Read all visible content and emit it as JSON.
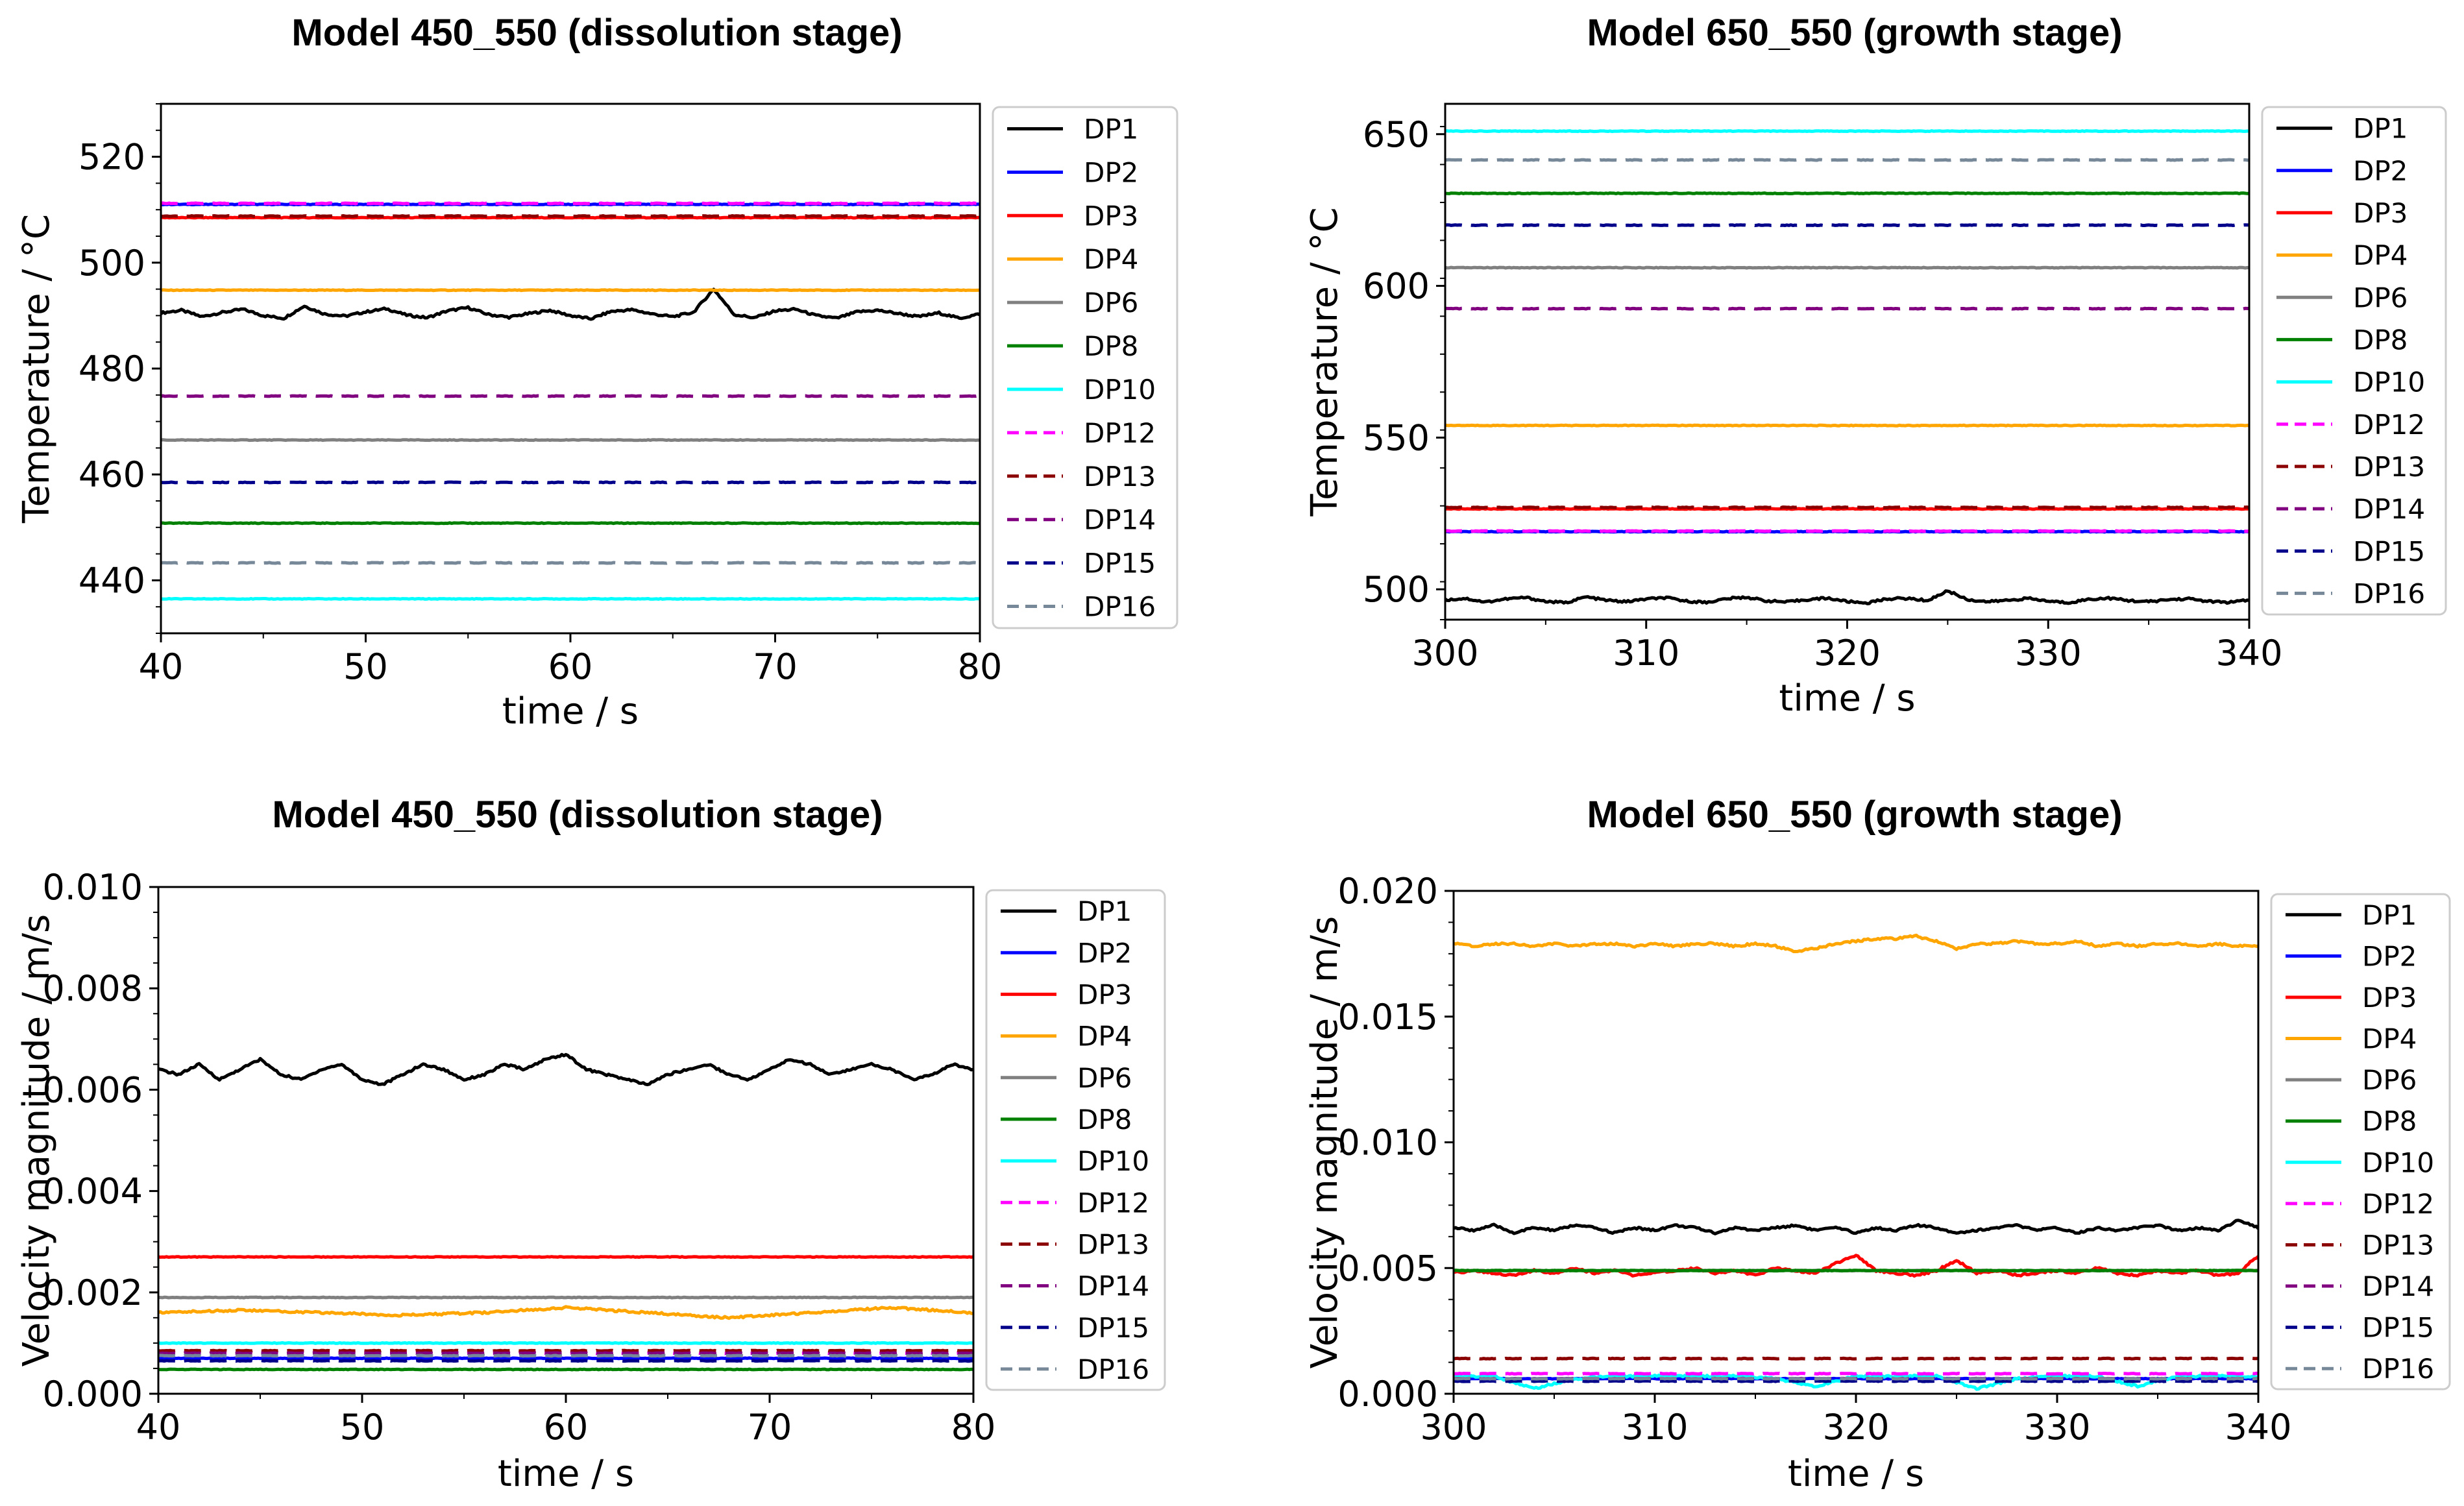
{
  "chart_data": [
    {
      "type": "line",
      "title": "Model 450_550 (dissolution stage)",
      "xlabel": "time / s",
      "ylabel": "Temperature / °C",
      "xlim": [
        40,
        80
      ],
      "ylim": [
        430,
        530
      ],
      "xticks": [
        40,
        50,
        60,
        70,
        80
      ],
      "xtick_labels": [
        "40",
        "50",
        "60",
        "70",
        "80"
      ],
      "yticks": [
        440,
        460,
        480,
        500,
        520
      ],
      "ytick_labels": [
        "440",
        "460",
        "480",
        "500",
        "520"
      ],
      "legend_position": "outside-right",
      "series": [
        {
          "name": "DP1",
          "color": "#000000",
          "dash": "solid",
          "values": [
            490.5,
            491.0,
            489.8,
            490.6,
            491.2,
            490.0,
            489.5,
            491.8,
            490.3,
            489.9,
            490.7,
            491.3,
            490.1,
            489.6,
            490.9,
            491.5,
            490.2,
            489.7,
            490.4,
            491.0,
            490.0,
            489.4,
            490.8,
            491.1,
            490.3,
            489.8,
            490.6,
            495.0,
            490.2,
            489.6,
            490.9,
            491.2,
            490.0,
            489.5,
            490.7,
            491.0,
            490.4,
            489.8,
            490.5,
            489.5,
            490.3
          ]
        },
        {
          "name": "DP2",
          "color": "#0000ff",
          "dash": "solid",
          "values": [
            511.0,
            511.0
          ]
        },
        {
          "name": "DP3",
          "color": "#ff0000",
          "dash": "solid",
          "values": [
            508.5,
            508.5
          ]
        },
        {
          "name": "DP4",
          "color": "#ffa500",
          "dash": "solid",
          "values": [
            494.8,
            494.8
          ]
        },
        {
          "name": "DP6",
          "color": "#808080",
          "dash": "solid",
          "values": [
            466.5,
            466.5
          ]
        },
        {
          "name": "DP8",
          "color": "#008000",
          "dash": "solid",
          "values": [
            450.8,
            450.8
          ]
        },
        {
          "name": "DP10",
          "color": "#00ffff",
          "dash": "solid",
          "values": [
            436.5,
            436.5
          ]
        },
        {
          "name": "DP12",
          "color": "#ff00ff",
          "dash": "dashed",
          "values": [
            511.2,
            511.2
          ]
        },
        {
          "name": "DP13",
          "color": "#8b0000",
          "dash": "dashed",
          "values": [
            508.8,
            508.8
          ]
        },
        {
          "name": "DP14",
          "color": "#800080",
          "dash": "dashed",
          "values": [
            474.8,
            474.8
          ]
        },
        {
          "name": "DP15",
          "color": "#00008b",
          "dash": "dashed",
          "values": [
            458.5,
            458.5
          ]
        },
        {
          "name": "DP16",
          "color": "#778899",
          "dash": "dashed",
          "values": [
            443.3,
            443.3
          ]
        }
      ]
    },
    {
      "type": "line",
      "title": "Model 650_550 (growth stage)",
      "xlabel": "time / s",
      "ylabel": "Temperature / °C",
      "xlim": [
        300,
        340
      ],
      "ylim": [
        490,
        660
      ],
      "xticks": [
        300,
        310,
        320,
        330,
        340
      ],
      "xtick_labels": [
        "300",
        "310",
        "320",
        "330",
        "340"
      ],
      "yticks": [
        500,
        550,
        600,
        650
      ],
      "ytick_labels": [
        "500",
        "550",
        "600",
        "650"
      ],
      "legend_position": "outside-right",
      "series": [
        {
          "name": "DP1",
          "color": "#000000",
          "dash": "solid",
          "values": [
            496.5,
            497.0,
            495.8,
            496.8,
            497.3,
            496.0,
            495.6,
            497.5,
            496.4,
            495.9,
            496.8,
            497.2,
            496.1,
            495.7,
            496.9,
            497.4,
            496.2,
            495.8,
            496.6,
            497.1,
            496.0,
            495.5,
            496.9,
            497.0,
            496.3,
            499.5,
            496.6,
            495.9,
            496.4,
            497.0,
            496.1,
            495.6,
            496.7,
            497.1,
            496.3,
            495.9,
            496.6,
            496.9,
            496.0,
            495.7,
            496.4
          ]
        },
        {
          "name": "DP2",
          "color": "#0000ff",
          "dash": "solid",
          "values": [
            519.0,
            519.0
          ]
        },
        {
          "name": "DP3",
          "color": "#ff0000",
          "dash": "solid",
          "values": [
            526.5,
            526.5
          ]
        },
        {
          "name": "DP4",
          "color": "#ffa500",
          "dash": "solid",
          "values": [
            554.0,
            554.0
          ]
        },
        {
          "name": "DP6",
          "color": "#808080",
          "dash": "solid",
          "values": [
            606.0,
            606.0
          ]
        },
        {
          "name": "DP8",
          "color": "#008000",
          "dash": "solid",
          "values": [
            630.5,
            630.5
          ]
        },
        {
          "name": "DP10",
          "color": "#00ffff",
          "dash": "solid",
          "values": [
            651.0,
            651.0
          ]
        },
        {
          "name": "DP12",
          "color": "#ff00ff",
          "dash": "dashed",
          "values": [
            519.2,
            519.2
          ]
        },
        {
          "name": "DP13",
          "color": "#8b0000",
          "dash": "dashed",
          "values": [
            527.0,
            527.0
          ]
        },
        {
          "name": "DP14",
          "color": "#800080",
          "dash": "dashed",
          "values": [
            592.5,
            592.5
          ]
        },
        {
          "name": "DP15",
          "color": "#00008b",
          "dash": "dashed",
          "values": [
            620.0,
            620.0
          ]
        },
        {
          "name": "DP16",
          "color": "#778899",
          "dash": "dashed",
          "values": [
            641.5,
            641.5
          ]
        }
      ]
    },
    {
      "type": "line",
      "title": "Model 450_550 (dissolution stage)",
      "xlabel": "time / s",
      "ylabel": "Velocity magnitude / m/s",
      "xlim": [
        40,
        80
      ],
      "ylim": [
        0,
        0.01
      ],
      "xticks": [
        40,
        50,
        60,
        70,
        80
      ],
      "xtick_labels": [
        "40",
        "50",
        "60",
        "70",
        "80"
      ],
      "yticks": [
        0,
        0.002,
        0.004,
        0.006,
        0.008,
        0.01
      ],
      "ytick_labels": [
        "0.000",
        "0.002",
        "0.004",
        "0.006",
        "0.008",
        "0.010"
      ],
      "legend_position": "outside-right",
      "series": [
        {
          "name": "DP1",
          "color": "#000000",
          "dash": "solid",
          "values": [
            0.0064,
            0.0063,
            0.0065,
            0.0062,
            0.0064,
            0.0066,
            0.0063,
            0.0062,
            0.0064,
            0.0065,
            0.0062,
            0.0061,
            0.0063,
            0.0065,
            0.0064,
            0.0062,
            0.0063,
            0.0065,
            0.0064,
            0.0066,
            0.0067,
            0.0064,
            0.0063,
            0.0062,
            0.0061,
            0.0063,
            0.0064,
            0.0065,
            0.0063,
            0.0062,
            0.0064,
            0.0066,
            0.0065,
            0.0063,
            0.0064,
            0.0065,
            0.0064,
            0.0062,
            0.0063,
            0.0065,
            0.0064
          ]
        },
        {
          "name": "DP2",
          "color": "#0000ff",
          "dash": "solid",
          "values": [
            0.0007,
            0.0007
          ]
        },
        {
          "name": "DP3",
          "color": "#ff0000",
          "dash": "solid",
          "values": [
            0.0027,
            0.0027
          ]
        },
        {
          "name": "DP4",
          "color": "#ffa500",
          "dash": "solid",
          "values": [
            0.0016,
            0.00165,
            0.0016,
            0.00155,
            0.0016,
            0.0017,
            0.0016,
            0.0015,
            0.0016,
            0.0017,
            0.0016
          ]
        },
        {
          "name": "DP6",
          "color": "#808080",
          "dash": "solid",
          "values": [
            0.0019,
            0.0019
          ]
        },
        {
          "name": "DP8",
          "color": "#008000",
          "dash": "solid",
          "values": [
            0.00048,
            0.00048
          ]
        },
        {
          "name": "DP10",
          "color": "#00ffff",
          "dash": "solid",
          "values": [
            0.001,
            0.001
          ]
        },
        {
          "name": "DP12",
          "color": "#ff00ff",
          "dash": "dashed",
          "values": [
            0.0008,
            0.0008
          ]
        },
        {
          "name": "DP13",
          "color": "#8b0000",
          "dash": "dashed",
          "values": [
            0.00085,
            0.00085
          ]
        },
        {
          "name": "DP14",
          "color": "#800080",
          "dash": "dashed",
          "values": [
            0.0008,
            0.0008
          ]
        },
        {
          "name": "DP15",
          "color": "#00008b",
          "dash": "dashed",
          "values": [
            0.00065,
            0.00065
          ]
        },
        {
          "name": "DP16",
          "color": "#778899",
          "dash": "dashed",
          "values": [
            0.00075,
            0.00075
          ]
        }
      ]
    },
    {
      "type": "line",
      "title": "Model 650_550 (growth stage)",
      "xlabel": "time / s",
      "ylabel": "Velocity magnitude / m/s",
      "xlim": [
        300,
        340
      ],
      "ylim": [
        0,
        0.02
      ],
      "xticks": [
        300,
        310,
        320,
        330,
        340
      ],
      "xtick_labels": [
        "300",
        "310",
        "320",
        "330",
        "340"
      ],
      "yticks": [
        0,
        0.005,
        0.01,
        0.015,
        0.02
      ],
      "ytick_labels": [
        "0.000",
        "0.005",
        "0.010",
        "0.015",
        "0.020"
      ],
      "legend_position": "outside-right",
      "series": [
        {
          "name": "DP1",
          "color": "#000000",
          "dash": "solid",
          "values": [
            0.0066,
            0.0065,
            0.0067,
            0.0064,
            0.0066,
            0.0065,
            0.0067,
            0.0066,
            0.0064,
            0.0066,
            0.0065,
            0.0067,
            0.0066,
            0.0064,
            0.0066,
            0.0065,
            0.0066,
            0.0067,
            0.0065,
            0.0066,
            0.0064,
            0.0066,
            0.0065,
            0.0067,
            0.0066,
            0.0064,
            0.0065,
            0.0066,
            0.0067,
            0.0065,
            0.0066,
            0.0064,
            0.0066,
            0.0065,
            0.0066,
            0.0067,
            0.0065,
            0.0066,
            0.0065,
            0.0069,
            0.0066
          ]
        },
        {
          "name": "DP2",
          "color": "#0000ff",
          "dash": "solid",
          "values": [
            0.0006,
            0.0006
          ]
        },
        {
          "name": "DP3",
          "color": "#ff0000",
          "dash": "solid",
          "values": [
            0.0048,
            0.0049,
            0.0048,
            0.0047,
            0.0049,
            0.0048,
            0.005,
            0.0048,
            0.0049,
            0.0047,
            0.0048,
            0.0049,
            0.005,
            0.0048,
            0.0049,
            0.0047,
            0.005,
            0.0049,
            0.0048,
            0.0052,
            0.0055,
            0.0049,
            0.0048,
            0.0047,
            0.0049,
            0.0053,
            0.0048,
            0.0049,
            0.0047,
            0.0048,
            0.0049,
            0.0048,
            0.005,
            0.0048,
            0.0047,
            0.0049,
            0.0048,
            0.0049,
            0.0047,
            0.0048,
            0.0055
          ]
        },
        {
          "name": "DP4",
          "color": "#ffa500",
          "dash": "solid",
          "values": [
            0.0179,
            0.0178,
            0.0179,
            0.0179,
            0.0178,
            0.0179,
            0.0178,
            0.0179,
            0.0179,
            0.0178,
            0.0179,
            0.0178,
            0.0179,
            0.0179,
            0.0178,
            0.0179,
            0.0178,
            0.0176,
            0.0177,
            0.0179,
            0.018,
            0.0181,
            0.0181,
            0.0182,
            0.018,
            0.0177,
            0.0179,
            0.0179,
            0.018,
            0.0179,
            0.0179,
            0.018,
            0.0178,
            0.0179,
            0.0178,
            0.0179,
            0.0179,
            0.0178,
            0.0179,
            0.0178,
            0.0178
          ]
        },
        {
          "name": "DP6",
          "color": "#808080",
          "dash": "solid",
          "values": [
            0.0049,
            0.0049
          ]
        },
        {
          "name": "DP8",
          "color": "#008000",
          "dash": "solid",
          "values": [
            0.0049,
            0.0049
          ]
        },
        {
          "name": "DP10",
          "color": "#00ffff",
          "dash": "solid",
          "values": [
            0.0007,
            0.0007,
            0.0002,
            0.0006,
            0.0007,
            0.0007,
            0.0007,
            0.0007,
            0.0006,
            0.0003,
            0.0007,
            0.0007,
            0.0007,
            0.0002,
            0.0006,
            0.0007,
            0.0007,
            0.0003,
            0.0007,
            0.0007,
            0.0007
          ]
        },
        {
          "name": "DP12",
          "color": "#ff00ff",
          "dash": "dashed",
          "values": [
            0.0008,
            0.0008
          ]
        },
        {
          "name": "DP13",
          "color": "#8b0000",
          "dash": "dashed",
          "values": [
            0.0014,
            0.0014
          ]
        },
        {
          "name": "DP14",
          "color": "#800080",
          "dash": "dashed",
          "values": [
            0.0006,
            0.0006
          ]
        },
        {
          "name": "DP15",
          "color": "#00008b",
          "dash": "dashed",
          "values": [
            0.0005,
            0.0005
          ]
        },
        {
          "name": "DP16",
          "color": "#778899",
          "dash": "dashed",
          "values": [
            0.0006,
            0.0006
          ]
        }
      ]
    }
  ]
}
